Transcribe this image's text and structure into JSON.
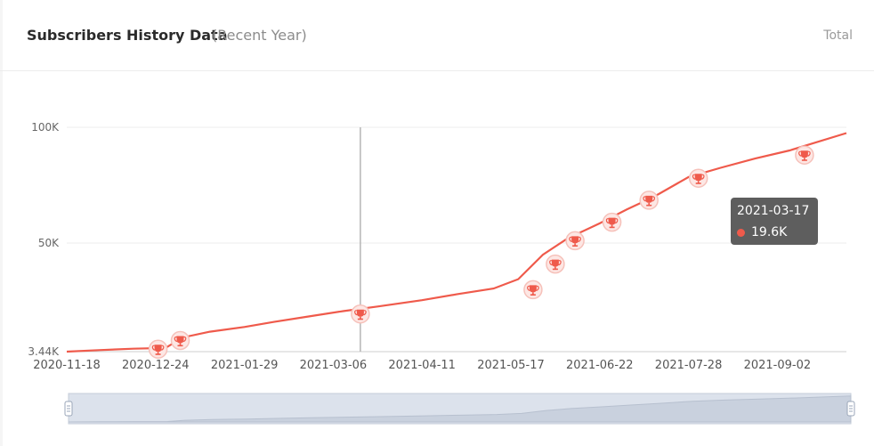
{
  "header": {
    "title": "Subscribers History Data",
    "subtitle": "(Recent Year)",
    "total_label": "Total"
  },
  "colors": {
    "line": "#ef5a4b",
    "marker": "#ef5a4b",
    "zoom_fill": "#dce2ec"
  },
  "chart_data": {
    "type": "line",
    "y_ticks": [
      {
        "label": "100K",
        "value": 100000
      },
      {
        "label": "50K",
        "value": 50000
      },
      {
        "label": "3.44K",
        "value": 3440
      }
    ],
    "ylim": [
      3440,
      100000
    ],
    "x_ticks": [
      "2020-11-18",
      "2020-12-24",
      "2021-01-29",
      "2021-03-06",
      "2021-04-11",
      "2021-05-17",
      "2021-06-22",
      "2021-07-28",
      "2021-09-02"
    ],
    "xlim": [
      "2020-11-18",
      "2021-09-30"
    ],
    "series": [
      {
        "points": [
          [
            "2020-11-18",
            3440
          ],
          [
            "2020-12-01",
            4100
          ],
          [
            "2020-12-15",
            4700
          ],
          [
            "2020-12-28",
            5000
          ],
          [
            "2021-01-04",
            9500
          ],
          [
            "2021-01-15",
            12000
          ],
          [
            "2021-01-29",
            14000
          ],
          [
            "2021-02-10",
            16200
          ],
          [
            "2021-02-24",
            18500
          ],
          [
            "2021-03-10",
            20800
          ],
          [
            "2021-03-24",
            22800
          ],
          [
            "2021-04-11",
            25500
          ],
          [
            "2021-04-25",
            28000
          ],
          [
            "2021-05-10",
            30500
          ],
          [
            "2021-05-20",
            34500
          ],
          [
            "2021-05-30",
            45000
          ],
          [
            "2021-06-09",
            52000
          ],
          [
            "2021-06-22",
            58500
          ],
          [
            "2021-07-03",
            64500
          ],
          [
            "2021-07-14",
            70000
          ],
          [
            "2021-07-28",
            78500
          ],
          [
            "2021-08-10",
            82500
          ],
          [
            "2021-08-24",
            86500
          ],
          [
            "2021-09-07",
            90000
          ],
          [
            "2021-09-30",
            97500
          ]
        ],
        "markers": [
          [
            "2020-12-25",
            4500
          ],
          [
            "2021-01-03",
            8200
          ],
          [
            "2021-03-17",
            19600
          ],
          [
            "2021-05-26",
            30000
          ],
          [
            "2021-06-04",
            41000
          ],
          [
            "2021-06-12",
            51000
          ],
          [
            "2021-06-27",
            59000
          ],
          [
            "2021-07-12",
            68500
          ],
          [
            "2021-08-01",
            78000
          ],
          [
            "2021-09-13",
            88000
          ]
        ]
      }
    ],
    "tooltip": {
      "date": "2021-03-17",
      "value": "19.6K"
    },
    "crosshair_date": "2021-03-17",
    "grid": true
  }
}
